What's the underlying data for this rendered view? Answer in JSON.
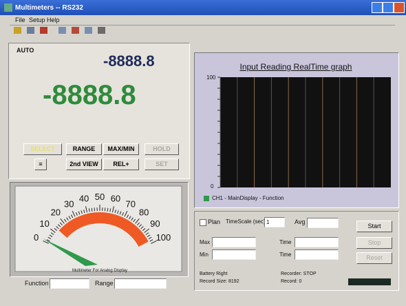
{
  "window": {
    "title": "Multimeters -- RS232",
    "menu": [
      "File",
      "Setup",
      "Help"
    ]
  },
  "display": {
    "mode": "AUTO",
    "secondary_reading": "-8888.8",
    "main_reading": "-8888.8"
  },
  "buttons": [
    [
      "SELECT",
      "RANGE",
      "MAX/MIN",
      "HOLD"
    ],
    [
      "≡",
      "2nd VIEW",
      "REL+",
      "SET"
    ]
  ],
  "gauge": {
    "labels": [
      "0",
      "10",
      "20",
      "30",
      "40",
      "50",
      "60",
      "70",
      "80",
      "90",
      "100"
    ],
    "caption": "Multimeter For Analog Display"
  },
  "fields": {
    "function": "Function",
    "range": "Range"
  },
  "graph": {
    "title": "Input Reading RealTime graph",
    "top": "100",
    "bottom": "0",
    "legend": "CH1 - MainDisplay - Function"
  },
  "controls": {
    "run": "Plan",
    "timescale": "TimeScale (sec)",
    "timescale_value": "1",
    "avg": "Avg",
    "max": "Max",
    "min": "Min",
    "time1": "Time",
    "time2": "Time",
    "start": "Start",
    "stop": "Stop",
    "reset": "Reset",
    "battery": "Battery Right",
    "record_size": "Record Size: 8192",
    "recorder": "Recorder: STOP",
    "record": "Record: 0"
  }
}
